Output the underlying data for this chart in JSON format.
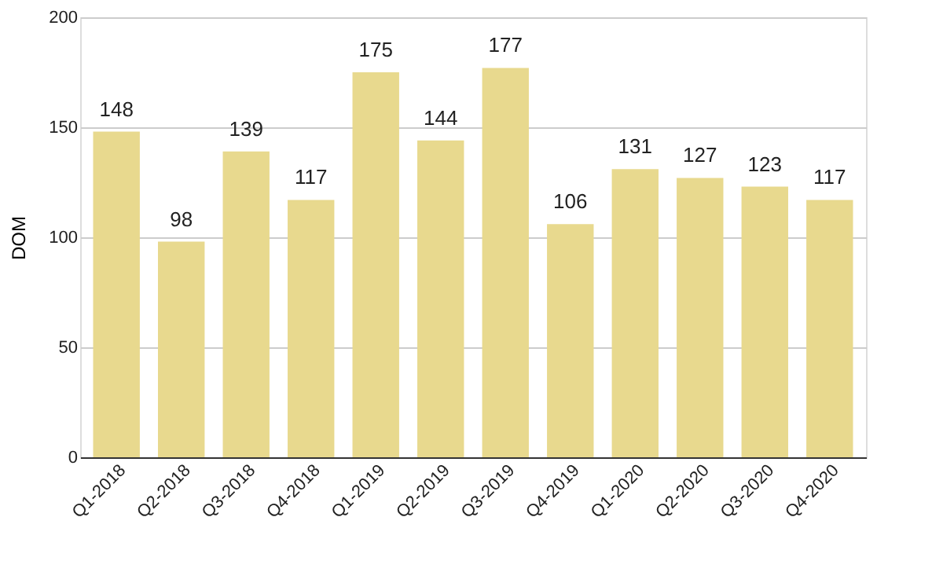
{
  "chart_data": {
    "type": "bar",
    "ylabel": "DOM",
    "categories": [
      "Q1-2018",
      "Q2-2018",
      "Q3-2018",
      "Q4-2018",
      "Q1-2019",
      "Q2-2019",
      "Q3-2019",
      "Q4-2019",
      "Q1-2020",
      "Q2-2020",
      "Q3-2020",
      "Q4-2020"
    ],
    "values": [
      148,
      98,
      139,
      117,
      175,
      144,
      177,
      106,
      131,
      127,
      123,
      117
    ],
    "color": "#e8d98e",
    "ylim": [
      0,
      200
    ],
    "yticks": [
      0,
      50,
      100,
      150,
      200
    ],
    "grid": "y",
    "data_labels": true
  }
}
